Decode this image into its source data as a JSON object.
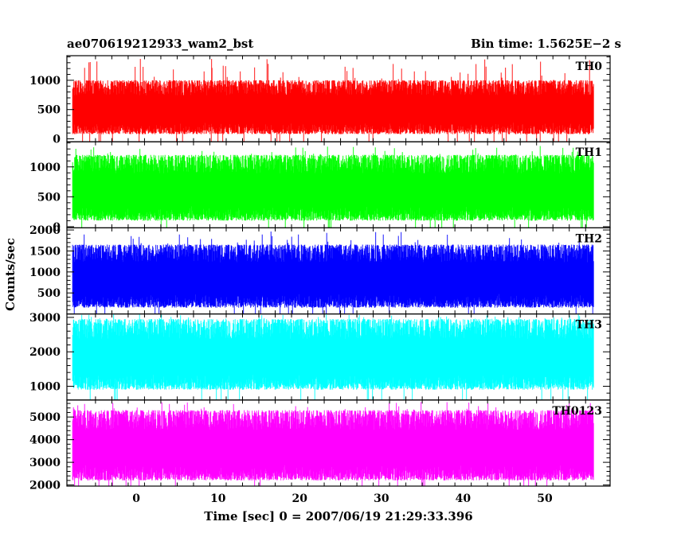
{
  "chart_data": {
    "type": "line",
    "title_left": "ae070619212933_wam2_bst",
    "title_right": "Bin time: 1.5625E−2 s",
    "xlabel": "Time [sec] 0 = 2007/06/19 21:29:33.396",
    "ylabel": "Counts/sec",
    "xlim": [
      -8.5,
      58.0
    ],
    "data_x_range": [
      -7.8,
      56.0
    ],
    "x_ticks": [
      0,
      10,
      20,
      30,
      40,
      50
    ],
    "x_tick_labels": [
      "0",
      "10",
      "20",
      "30",
      "40",
      "50"
    ],
    "grid": false,
    "panels": [
      {
        "name": "TH0",
        "color": "#ff0000",
        "ylim": [
          -50,
          1420
        ],
        "y_ticks": [
          0,
          500,
          1000
        ],
        "y_tick_labels": [
          "0",
          "500",
          "1000"
        ],
        "baseline": 600,
        "typical_low": 80,
        "typical_high": 1000,
        "peak": 1400
      },
      {
        "name": "TH1",
        "color": "#00ff00",
        "ylim": [
          -20,
          1420
        ],
        "y_ticks": [
          0,
          500,
          1000
        ],
        "y_tick_labels": [
          "0",
          "500",
          "1000"
        ],
        "baseline": 650,
        "typical_low": 100,
        "typical_high": 1200,
        "peak": 1350
      },
      {
        "name": "TH2",
        "color": "#0000ff",
        "ylim": [
          0,
          2050
        ],
        "y_ticks": [
          500,
          1000,
          1500,
          2000
        ],
        "y_tick_labels": [
          "500",
          "1000",
          "1500",
          "2000"
        ],
        "baseline": 950,
        "typical_low": 150,
        "typical_high": 1650,
        "peak": 2000
      },
      {
        "name": "TH3",
        "color": "#00ffff",
        "ylim": [
          600,
          3100
        ],
        "y_ticks": [
          1000,
          2000,
          3000
        ],
        "y_tick_labels": [
          "1000",
          "2000",
          "3000"
        ],
        "baseline": 1950,
        "typical_low": 900,
        "typical_high": 2950,
        "peak": 3100
      },
      {
        "name": "TH0123",
        "color": "#ff00ff",
        "ylim": [
          1950,
          5750
        ],
        "y_ticks": [
          2000,
          3000,
          4000,
          5000
        ],
        "y_tick_labels": [
          "2000",
          "3000",
          "4000",
          "5000"
        ],
        "baseline": 3800,
        "typical_low": 2200,
        "typical_high": 5300,
        "peak": 5700
      }
    ]
  }
}
